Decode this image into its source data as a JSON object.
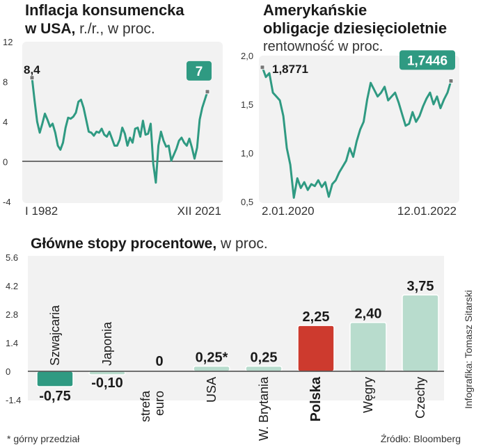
{
  "chart_data": [
    {
      "type": "line",
      "title": "Inflacja konsumencka",
      "title_line2_bold": "w USA,",
      "title_line2_unit": " r./r., w proc.",
      "yticks": [
        "12",
        "8",
        "4",
        "0",
        "-4"
      ],
      "ylim": [
        -4,
        12
      ],
      "x_labels": [
        "I 1982",
        "XII 2021"
      ],
      "start_value": "8,4",
      "end_value": "7",
      "series": [
        {
          "values": [
            8.4,
            6.1,
            4.0,
            2.9,
            3.8,
            4.8,
            4.2,
            3.5,
            3.8,
            2.9,
            1.6,
            1.2,
            1.9,
            3.4,
            4.4,
            4.3,
            4.5,
            4.9,
            6.0,
            6.2,
            5.4,
            4.2,
            3.0,
            2.9,
            2.6,
            3.0,
            2.9,
            3.3,
            2.7,
            2.5,
            3.0,
            2.3,
            1.6,
            1.6,
            2.2,
            3.4,
            2.8,
            1.6,
            2.4,
            1.9,
            3.3,
            3.4,
            2.5,
            4.1,
            2.7,
            2.8,
            3.8,
            -0.2,
            -2.1,
            1.6,
            3.0,
            2.1,
            1.5,
            1.6,
            0.1,
            0.7,
            1.3,
            2.1,
            2.4,
            1.9,
            1.6,
            2.3,
            1.4,
            0.3,
            1.4,
            4.2,
            5.4,
            6.2,
            7.0
          ]
        }
      ]
    },
    {
      "type": "line",
      "title_line1": "Amerykańskie",
      "title_line2": "obligacje dziesięcioletnie",
      "subtitle": "rentowność w proc.",
      "yticks": [
        "2,0",
        "1,5",
        "1,0",
        "0,5"
      ],
      "ylim": [
        0.5,
        2.0
      ],
      "x_labels": [
        "2.01.2020",
        "12.01.2022"
      ],
      "start_value": "1,8771",
      "end_value": "1,7446",
      "series": [
        {
          "values": [
            1.88,
            1.78,
            1.82,
            1.62,
            1.58,
            1.54,
            1.38,
            1.05,
            0.88,
            0.54,
            0.74,
            0.64,
            0.7,
            0.62,
            0.68,
            0.66,
            0.72,
            0.65,
            0.7,
            0.55,
            0.68,
            0.72,
            0.8,
            0.86,
            0.92,
            1.05,
            0.96,
            1.12,
            1.24,
            1.32,
            1.55,
            1.72,
            1.65,
            1.58,
            1.62,
            1.68,
            1.54,
            1.58,
            1.62,
            1.52,
            1.4,
            1.28,
            1.3,
            1.42,
            1.32,
            1.38,
            1.48,
            1.56,
            1.62,
            1.5,
            1.58,
            1.46,
            1.55,
            1.62,
            1.74
          ]
        }
      ]
    },
    {
      "type": "bar",
      "title_bold": "Główne stopy procentowe,",
      "title_unit": " w proc.",
      "yticks": [
        "5.6",
        "4.2",
        "2.8",
        "1.4",
        "0",
        "-1.4"
      ],
      "ylim": [
        -1.4,
        5.6
      ],
      "categories": [
        "Szwajcaria",
        "Japonia",
        "strefa\neuro",
        "USA",
        "W. Brytania",
        "Polska",
        "Węgry",
        "Czechy"
      ],
      "values": [
        -0.75,
        -0.1,
        0,
        0.25,
        0.25,
        2.25,
        2.4,
        3.75
      ],
      "value_labels": [
        "-0,75",
        "-0,10",
        "0",
        "0,25*",
        "0,25",
        "2,25",
        "2,40",
        "3,75"
      ],
      "colors": [
        "#2f9a82",
        "#b8dccd",
        "#b8dccd",
        "#b8dccd",
        "#b8dccd",
        "#cd3a2e",
        "#b8dccd",
        "#b8dccd"
      ],
      "highlight": "Polska"
    }
  ],
  "footnote": "* górny przedział",
  "source": "Źródło: Bloomberg",
  "credit": "Infografika: Tomasz Sitarski",
  "colors": {
    "accent": "#2f9a82",
    "bar_light": "#b8dccd",
    "highlight": "#cd3a2e",
    "panel": "#f2f2f2"
  }
}
